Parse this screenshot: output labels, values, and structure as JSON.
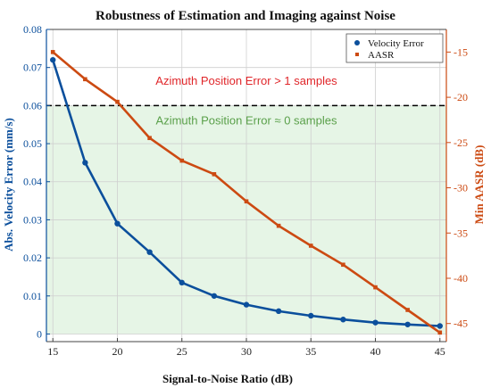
{
  "chart_data": {
    "type": "line",
    "title": "Robustness of Estimation and Imaging against Noise",
    "xlabel": "Signal-to-Noise Ratio (dB)",
    "ylabel_left": "Abs. Velocity Error (mm/s)",
    "ylabel_right": "Min AASR (dB)",
    "xlim": [
      14.5,
      45.5
    ],
    "ylim_left": [
      -0.002,
      0.08
    ],
    "ylim_right": [
      -47,
      -12.5
    ],
    "x_ticks": [
      15,
      20,
      25,
      30,
      35,
      40,
      45
    ],
    "y_ticks_left": [
      0,
      0.01,
      0.02,
      0.03,
      0.04,
      0.05,
      0.06,
      0.07,
      0.08
    ],
    "y_tick_labels_left": [
      "0",
      "0.01",
      "0.02",
      "0.03",
      "0.04",
      "0.05",
      "0.06",
      "0.07",
      "0.08"
    ],
    "y_ticks_right": [
      -15,
      -20,
      -25,
      -30,
      -35,
      -40,
      -45
    ],
    "grid": true,
    "legend_position": "top-right",
    "series": [
      {
        "name": "Velocity Error",
        "axis": "left",
        "color": "#0b4f9c",
        "marker": "circle",
        "x": [
          15,
          17.5,
          20,
          22.5,
          25,
          27.5,
          30,
          32.5,
          35,
          37.5,
          40,
          42.5,
          45
        ],
        "y": [
          0.072,
          0.045,
          0.029,
          0.0215,
          0.0135,
          0.01,
          0.0077,
          0.006,
          0.0048,
          0.0038,
          0.003,
          0.0025,
          0.0021
        ]
      },
      {
        "name": "AASR",
        "axis": "right",
        "color": "#cc4a12",
        "marker": "square",
        "x": [
          15,
          17.5,
          20,
          22.5,
          25,
          27.5,
          30,
          32.5,
          35,
          37.5,
          40,
          42.5,
          45
        ],
        "y": [
          -15,
          -18,
          -20.5,
          -24.5,
          -27,
          -28.5,
          -31.5,
          -34.2,
          -36.4,
          -38.5,
          -41,
          -43.5,
          -46
        ]
      }
    ],
    "threshold": {
      "y": 0.06,
      "axis": "left",
      "style": "dashed",
      "color": "#000000"
    },
    "shaded_region": {
      "from": 0,
      "to": 0.06,
      "color": "#e6f5e6"
    },
    "annotations": [
      {
        "text": "Azimuth Position Error > 1 samples",
        "x": 30,
        "y": 0.0655,
        "color": "#e0262a"
      },
      {
        "text": "Azimuth Position Error ≈ 0 samples",
        "x": 30,
        "y": 0.055,
        "color": "#5aa04a"
      }
    ]
  }
}
